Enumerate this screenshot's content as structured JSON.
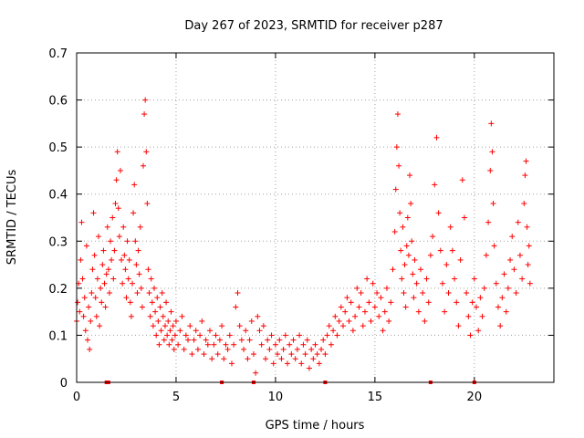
{
  "chart_data": {
    "type": "scatter",
    "title": "Day 267 of 2023, SRMTID for receiver p287",
    "xlabel": "GPS time / hours",
    "ylabel": "SRMTID / TECUs",
    "xlim": [
      0,
      24
    ],
    "ylim": [
      0,
      0.7
    ],
    "x_ticks": [
      0,
      5,
      10,
      15,
      20
    ],
    "y_ticks": [
      0,
      0.1,
      0.2,
      0.3,
      0.4,
      0.5,
      0.6,
      0.7
    ],
    "x_tick_labels": [
      "0",
      "5",
      "10",
      "15",
      "20"
    ],
    "y_tick_labels": [
      "0",
      "0.1",
      "0.2",
      "0.3",
      "0.4",
      "0.5",
      "0.6",
      "0.7"
    ],
    "grid": true,
    "marker": "plus",
    "color": "#ff0000",
    "series": [
      {
        "name": "p287",
        "points": [
          [
            0.0,
            0.13
          ],
          [
            0.05,
            0.17
          ],
          [
            0.1,
            0.21
          ],
          [
            0.15,
            0.15
          ],
          [
            0.2,
            0.26
          ],
          [
            0.25,
            0.34
          ],
          [
            0.3,
            0.22
          ],
          [
            0.35,
            0.14
          ],
          [
            0.4,
            0.18
          ],
          [
            0.45,
            0.11
          ],
          [
            0.5,
            0.29
          ],
          [
            0.55,
            0.09
          ],
          [
            0.6,
            0.16
          ],
          [
            0.65,
            0.07
          ],
          [
            0.7,
            0.13
          ],
          [
            0.75,
            0.19
          ],
          [
            0.8,
            0.24
          ],
          [
            0.85,
            0.36
          ],
          [
            0.9,
            0.27
          ],
          [
            0.95,
            0.18
          ],
          [
            1.0,
            0.14
          ],
          [
            1.05,
            0.22
          ],
          [
            1.1,
            0.31
          ],
          [
            1.15,
            0.12
          ],
          [
            1.2,
            0.2
          ],
          [
            1.25,
            0.17
          ],
          [
            1.3,
            0.25
          ],
          [
            1.35,
            0.28
          ],
          [
            1.4,
            0.21
          ],
          [
            1.45,
            0.16
          ],
          [
            1.5,
            0.23
          ],
          [
            1.55,
            0.33
          ],
          [
            1.6,
            0.24
          ],
          [
            1.65,
            0.19
          ],
          [
            1.7,
            0.3
          ],
          [
            1.75,
            0.26
          ],
          [
            1.8,
            0.35
          ],
          [
            1.85,
            0.22
          ],
          [
            1.9,
            0.28
          ],
          [
            1.95,
            0.38
          ],
          [
            2.0,
            0.43
          ],
          [
            2.05,
            0.49
          ],
          [
            2.1,
            0.37
          ],
          [
            2.15,
            0.31
          ],
          [
            2.2,
            0.45
          ],
          [
            2.25,
            0.26
          ],
          [
            2.3,
            0.21
          ],
          [
            2.35,
            0.33
          ],
          [
            2.4,
            0.27
          ],
          [
            2.45,
            0.24
          ],
          [
            2.5,
            0.18
          ],
          [
            2.55,
            0.3
          ],
          [
            2.6,
            0.22
          ],
          [
            2.65,
            0.26
          ],
          [
            2.7,
            0.17
          ],
          [
            2.75,
            0.14
          ],
          [
            2.8,
            0.21
          ],
          [
            2.85,
            0.36
          ],
          [
            2.9,
            0.42
          ],
          [
            2.95,
            0.3
          ],
          [
            3.0,
            0.25
          ],
          [
            3.05,
            0.19
          ],
          [
            3.1,
            0.28
          ],
          [
            3.15,
            0.23
          ],
          [
            3.2,
            0.33
          ],
          [
            3.25,
            0.2
          ],
          [
            3.3,
            0.16
          ],
          [
            3.35,
            0.46
          ],
          [
            3.4,
            0.57
          ],
          [
            3.45,
            0.6
          ],
          [
            3.5,
            0.49
          ],
          [
            3.55,
            0.38
          ],
          [
            3.6,
            0.24
          ],
          [
            3.65,
            0.19
          ],
          [
            3.7,
            0.14
          ],
          [
            3.75,
            0.22
          ],
          [
            3.8,
            0.17
          ],
          [
            3.85,
            0.12
          ],
          [
            3.9,
            0.2
          ],
          [
            3.95,
            0.15
          ],
          [
            4.0,
            0.1
          ],
          [
            4.05,
            0.18
          ],
          [
            4.1,
            0.13
          ],
          [
            4.15,
            0.08
          ],
          [
            4.2,
            0.16
          ],
          [
            4.25,
            0.11
          ],
          [
            4.3,
            0.19
          ],
          [
            4.35,
            0.14
          ],
          [
            4.4,
            0.09
          ],
          [
            4.45,
            0.12
          ],
          [
            4.5,
            0.17
          ],
          [
            4.55,
            0.1
          ],
          [
            4.6,
            0.13
          ],
          [
            4.65,
            0.08
          ],
          [
            4.7,
            0.11
          ],
          [
            4.75,
            0.15
          ],
          [
            4.8,
            0.09
          ],
          [
            4.85,
            0.12
          ],
          [
            4.9,
            0.07
          ],
          [
            4.95,
            0.1
          ],
          [
            5.0,
            0.13
          ],
          [
            5.1,
            0.08
          ],
          [
            5.2,
            0.11
          ],
          [
            5.3,
            0.14
          ],
          [
            5.4,
            0.07
          ],
          [
            5.5,
            0.1
          ],
          [
            5.6,
            0.09
          ],
          [
            5.7,
            0.12
          ],
          [
            5.8,
            0.06
          ],
          [
            5.9,
            0.09
          ],
          [
            6.0,
            0.11
          ],
          [
            6.1,
            0.07
          ],
          [
            6.2,
            0.1
          ],
          [
            6.3,
            0.13
          ],
          [
            6.4,
            0.06
          ],
          [
            6.5,
            0.09
          ],
          [
            6.6,
            0.08
          ],
          [
            6.7,
            0.11
          ],
          [
            6.8,
            0.05
          ],
          [
            6.9,
            0.08
          ],
          [
            7.0,
            0.1
          ],
          [
            7.1,
            0.06
          ],
          [
            7.2,
            0.09
          ],
          [
            7.3,
            0.12
          ],
          [
            7.4,
            0.05
          ],
          [
            7.5,
            0.08
          ],
          [
            7.6,
            0.07
          ],
          [
            7.7,
            0.1
          ],
          [
            7.8,
            0.04
          ],
          [
            7.9,
            0.08
          ],
          [
            8.0,
            0.16
          ],
          [
            8.1,
            0.19
          ],
          [
            8.2,
            0.12
          ],
          [
            8.3,
            0.09
          ],
          [
            8.4,
            0.07
          ],
          [
            8.5,
            0.11
          ],
          [
            8.6,
            0.05
          ],
          [
            8.7,
            0.09
          ],
          [
            8.8,
            0.13
          ],
          [
            8.9,
            0.06
          ],
          [
            9.0,
            0.02
          ],
          [
            9.1,
            0.14
          ],
          [
            9.2,
            0.11
          ],
          [
            9.3,
            0.08
          ],
          [
            9.4,
            0.12
          ],
          [
            9.5,
            0.05
          ],
          [
            9.6,
            0.09
          ],
          [
            9.7,
            0.07
          ],
          [
            9.8,
            0.1
          ],
          [
            9.9,
            0.04
          ],
          [
            10.0,
            0.08
          ],
          [
            10.1,
            0.06
          ],
          [
            10.2,
            0.09
          ],
          [
            10.3,
            0.05
          ],
          [
            10.4,
            0.07
          ],
          [
            10.5,
            0.1
          ],
          [
            10.6,
            0.04
          ],
          [
            10.7,
            0.08
          ],
          [
            10.8,
            0.06
          ],
          [
            10.9,
            0.09
          ],
          [
            11.0,
            0.05
          ],
          [
            11.1,
            0.07
          ],
          [
            11.2,
            0.1
          ],
          [
            11.3,
            0.04
          ],
          [
            11.4,
            0.08
          ],
          [
            11.5,
            0.06
          ],
          [
            11.6,
            0.09
          ],
          [
            11.7,
            0.03
          ],
          [
            11.8,
            0.07
          ],
          [
            11.9,
            0.05
          ],
          [
            12.0,
            0.08
          ],
          [
            12.1,
            0.06
          ],
          [
            12.2,
            0.04
          ],
          [
            12.3,
            0.07
          ],
          [
            12.4,
            0.09
          ],
          [
            12.5,
            0.06
          ],
          [
            12.6,
            0.1
          ],
          [
            12.7,
            0.12
          ],
          [
            12.8,
            0.08
          ],
          [
            12.9,
            0.11
          ],
          [
            13.0,
            0.14
          ],
          [
            13.1,
            0.1
          ],
          [
            13.2,
            0.13
          ],
          [
            13.3,
            0.16
          ],
          [
            13.4,
            0.12
          ],
          [
            13.5,
            0.15
          ],
          [
            13.6,
            0.18
          ],
          [
            13.7,
            0.13
          ],
          [
            13.8,
            0.17
          ],
          [
            13.9,
            0.11
          ],
          [
            14.0,
            0.14
          ],
          [
            14.1,
            0.2
          ],
          [
            14.2,
            0.16
          ],
          [
            14.3,
            0.19
          ],
          [
            14.4,
            0.12
          ],
          [
            14.5,
            0.15
          ],
          [
            14.6,
            0.22
          ],
          [
            14.7,
            0.17
          ],
          [
            14.8,
            0.13
          ],
          [
            14.9,
            0.21
          ],
          [
            15.0,
            0.16
          ],
          [
            15.1,
            0.19
          ],
          [
            15.2,
            0.14
          ],
          [
            15.3,
            0.18
          ],
          [
            15.4,
            0.11
          ],
          [
            15.5,
            0.15
          ],
          [
            15.6,
            0.2
          ],
          [
            15.7,
            0.13
          ],
          [
            15.8,
            0.17
          ],
          [
            15.9,
            0.24
          ],
          [
            16.0,
            0.32
          ],
          [
            16.05,
            0.41
          ],
          [
            16.1,
            0.5
          ],
          [
            16.15,
            0.57
          ],
          [
            16.2,
            0.46
          ],
          [
            16.25,
            0.36
          ],
          [
            16.3,
            0.28
          ],
          [
            16.35,
            0.22
          ],
          [
            16.4,
            0.33
          ],
          [
            16.45,
            0.19
          ],
          [
            16.5,
            0.25
          ],
          [
            16.55,
            0.16
          ],
          [
            16.6,
            0.29
          ],
          [
            16.65,
            0.35
          ],
          [
            16.7,
            0.27
          ],
          [
            16.75,
            0.44
          ],
          [
            16.8,
            0.38
          ],
          [
            16.85,
            0.3
          ],
          [
            16.9,
            0.23
          ],
          [
            16.95,
            0.18
          ],
          [
            17.0,
            0.26
          ],
          [
            17.1,
            0.21
          ],
          [
            17.2,
            0.15
          ],
          [
            17.3,
            0.24
          ],
          [
            17.4,
            0.19
          ],
          [
            17.5,
            0.13
          ],
          [
            17.6,
            0.22
          ],
          [
            17.7,
            0.17
          ],
          [
            17.8,
            0.27
          ],
          [
            17.9,
            0.31
          ],
          [
            18.0,
            0.42
          ],
          [
            18.1,
            0.52
          ],
          [
            18.2,
            0.36
          ],
          [
            18.3,
            0.28
          ],
          [
            18.4,
            0.21
          ],
          [
            18.5,
            0.15
          ],
          [
            18.6,
            0.25
          ],
          [
            18.7,
            0.19
          ],
          [
            18.8,
            0.33
          ],
          [
            18.9,
            0.28
          ],
          [
            19.0,
            0.22
          ],
          [
            19.1,
            0.17
          ],
          [
            19.2,
            0.12
          ],
          [
            19.3,
            0.26
          ],
          [
            19.4,
            0.43
          ],
          [
            19.5,
            0.35
          ],
          [
            19.6,
            0.19
          ],
          [
            19.7,
            0.14
          ],
          [
            19.8,
            0.1
          ],
          [
            19.9,
            0.17
          ],
          [
            20.0,
            0.22
          ],
          [
            20.1,
            0.16
          ],
          [
            20.2,
            0.11
          ],
          [
            20.3,
            0.18
          ],
          [
            20.4,
            0.14
          ],
          [
            20.5,
            0.2
          ],
          [
            20.6,
            0.27
          ],
          [
            20.7,
            0.34
          ],
          [
            20.8,
            0.45
          ],
          [
            20.85,
            0.55
          ],
          [
            20.9,
            0.49
          ],
          [
            20.95,
            0.38
          ],
          [
            21.0,
            0.29
          ],
          [
            21.1,
            0.21
          ],
          [
            21.2,
            0.16
          ],
          [
            21.3,
            0.12
          ],
          [
            21.4,
            0.18
          ],
          [
            21.5,
            0.23
          ],
          [
            21.6,
            0.15
          ],
          [
            21.7,
            0.2
          ],
          [
            21.8,
            0.26
          ],
          [
            21.9,
            0.31
          ],
          [
            22.0,
            0.24
          ],
          [
            22.1,
            0.19
          ],
          [
            22.2,
            0.34
          ],
          [
            22.3,
            0.27
          ],
          [
            22.4,
            0.22
          ],
          [
            22.5,
            0.38
          ],
          [
            22.55,
            0.44
          ],
          [
            22.6,
            0.47
          ],
          [
            22.65,
            0.33
          ],
          [
            22.7,
            0.25
          ],
          [
            22.75,
            0.29
          ],
          [
            22.8,
            0.21
          ]
        ]
      }
    ],
    "axis_markers_x": [
      1.5,
      1.6,
      7.3,
      8.9,
      12.5,
      17.8,
      20.0
    ]
  }
}
